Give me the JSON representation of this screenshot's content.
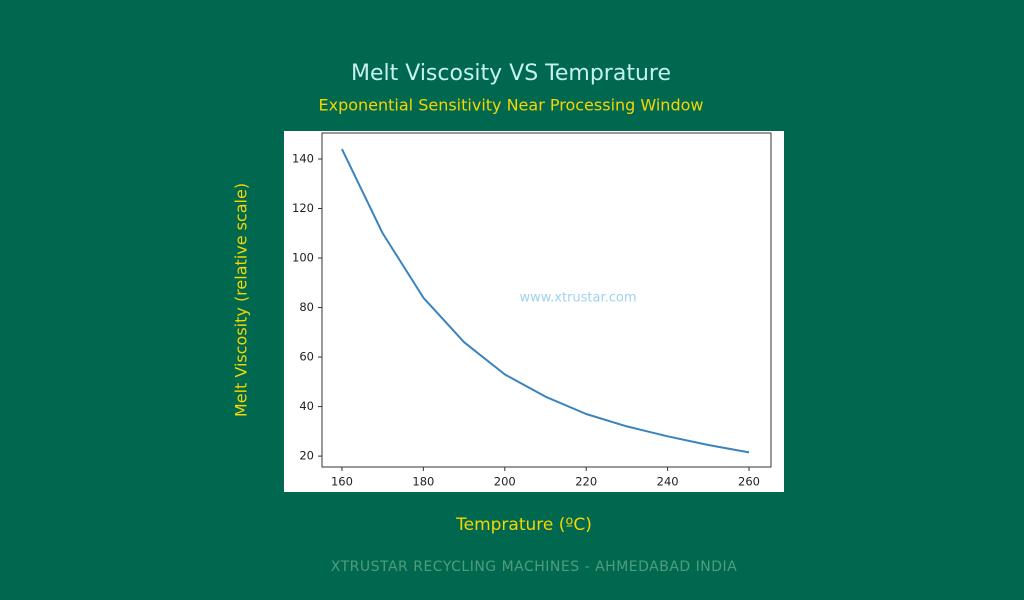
{
  "chart_data": {
    "type": "line",
    "title": "Melt Viscosity VS Temprature",
    "subtitle": "Exponential Sensitivity Near Processing Window",
    "xlabel": "Temprature (ºC)",
    "ylabel": "Melt Viscosity (relative scale)",
    "watermark": "www.xtrustar.com",
    "x": [
      160,
      170,
      180,
      190,
      200,
      210,
      220,
      230,
      240,
      250,
      260
    ],
    "series": [
      {
        "color": "#3b83bd",
        "values": [
          144,
          110,
          84,
          66,
          53,
          44,
          37,
          32,
          28,
          24.5,
          21.5
        ]
      }
    ],
    "xlim": [
      155.1,
      265.4
    ],
    "xticks": [
      160,
      180,
      200,
      220,
      240,
      260
    ],
    "ylim": [
      15.6,
      150.5
    ],
    "yticks": [
      20,
      40,
      60,
      80,
      100,
      120,
      140
    ],
    "grid": false
  },
  "footer": "XTRUSTAR RECYCLING MACHINES - AHMEDABAD INDIA"
}
